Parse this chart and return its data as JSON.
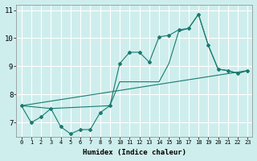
{
  "title": "",
  "xlabel": "Humidex (Indice chaleur)",
  "ylabel": "",
  "background_color": "#ceeeed",
  "grid_color": "#b0d8d6",
  "line_color": "#1a7a6e",
  "xlim": [
    -0.5,
    23.5
  ],
  "ylim": [
    6.5,
    11.2
  ],
  "yticks": [
    7,
    8,
    9,
    10,
    11
  ],
  "xticks": [
    0,
    1,
    2,
    3,
    4,
    5,
    6,
    7,
    8,
    9,
    10,
    11,
    12,
    13,
    14,
    15,
    16,
    17,
    18,
    19,
    20,
    21,
    22,
    23
  ],
  "line1_x": [
    0,
    1,
    2,
    3,
    4,
    5,
    6,
    7,
    8,
    9,
    10,
    11,
    12,
    13,
    14,
    15,
    16,
    17,
    18,
    19,
    20,
    21,
    22,
    23
  ],
  "line1_y": [
    7.6,
    7.0,
    7.2,
    7.5,
    6.85,
    6.6,
    6.75,
    6.75,
    7.35,
    7.6,
    9.1,
    9.5,
    9.5,
    9.15,
    10.05,
    10.1,
    10.3,
    10.35,
    10.85,
    9.75,
    8.9,
    8.85,
    8.75,
    8.85
  ],
  "line2_x": [
    0,
    3,
    9,
    10,
    14,
    15,
    16,
    17,
    18,
    19,
    20,
    21,
    22,
    23
  ],
  "line2_y": [
    7.6,
    7.5,
    7.6,
    8.45,
    8.45,
    9.1,
    10.25,
    10.35,
    10.85,
    9.75,
    8.9,
    8.85,
    8.75,
    8.85
  ],
  "line3_x": [
    0,
    23
  ],
  "line3_y": [
    7.6,
    8.85
  ]
}
